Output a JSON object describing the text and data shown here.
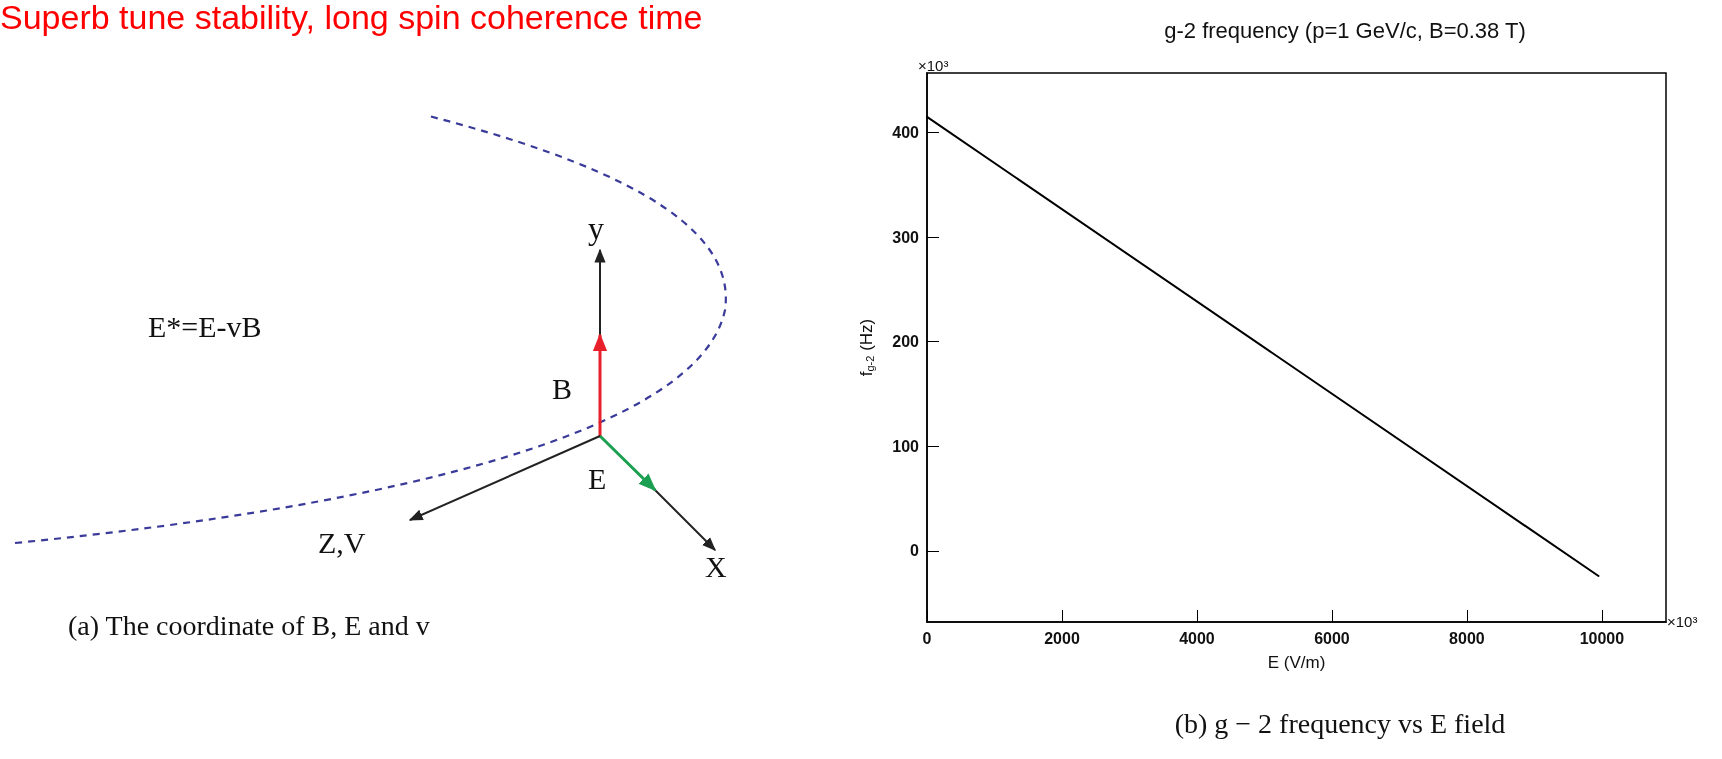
{
  "chart_data": {
    "type": "line",
    "title": "g-2 frequency (p=1 GeV/c, B=0.38 T)",
    "xlabel": "E (V/m)",
    "ylabel": "f$_{g-2}$ (Hz)",
    "x": [
      0,
      9950
    ],
    "series": [
      {
        "color": "#000000",
        "values": [
          415,
          -24
        ]
      }
    ],
    "xlim": [
      0,
      10950
    ],
    "xticks": [
      0,
      2000,
      4000,
      6000,
      8000,
      10000
    ],
    "ylim": [
      -68,
      457
    ],
    "yticks": [
      0,
      100,
      200,
      300,
      400
    ],
    "grid": false,
    "marker": "none",
    "line_style": "solid",
    "annotations": [
      "Superb tune stability, long spin coherence time",
      "E*=E-vB",
      "y",
      "B",
      "E",
      "Z,V",
      "X",
      "(a) The coordinate of B, E and v",
      "×10³",
      "×10³",
      "(b) g − 2 frequency vs E field"
    ]
  }
}
